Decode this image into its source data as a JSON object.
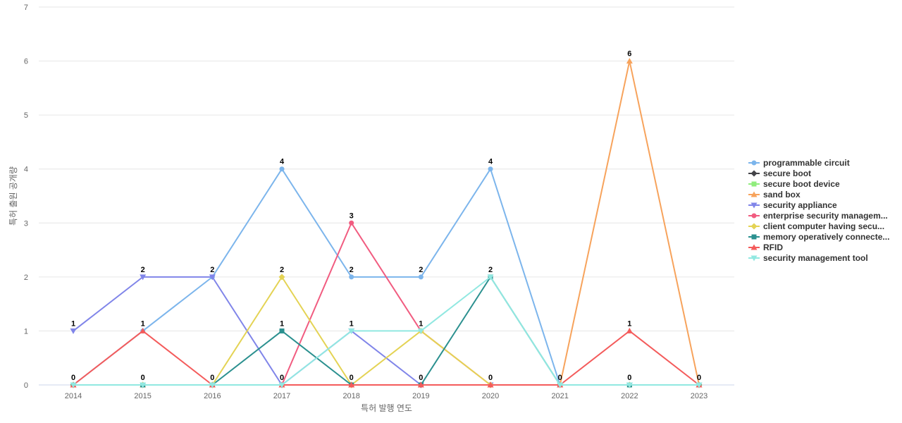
{
  "chart_data": {
    "type": "line",
    "title": "",
    "xlabel": "특허 발행 연도",
    "ylabel": "특허 출원 공개량",
    "x": [
      "2014",
      "2015",
      "2016",
      "2017",
      "2018",
      "2019",
      "2020",
      "2021",
      "2022",
      "2023"
    ],
    "ylim": [
      0,
      7
    ],
    "yticks": [
      0,
      1,
      2,
      3,
      4,
      5,
      6,
      7
    ],
    "grid": true,
    "legend_position": "right",
    "series": [
      {
        "name": "programmable circuit",
        "color": "#7cb5ec",
        "marker": "circle",
        "values": [
          0,
          1,
          2,
          4,
          2,
          2,
          4,
          0,
          0,
          0
        ]
      },
      {
        "name": "secure boot",
        "color": "#434348",
        "marker": "diamond",
        "values": [
          0,
          0,
          0,
          0,
          0,
          0,
          0,
          0,
          0,
          0
        ]
      },
      {
        "name": "secure boot device",
        "color": "#90ed7d",
        "marker": "square",
        "values": [
          0,
          0,
          0,
          0,
          0,
          0,
          0,
          0,
          0,
          0
        ]
      },
      {
        "name": "sand box",
        "color": "#f7a35c",
        "marker": "triangle",
        "values": [
          0,
          0,
          0,
          0,
          0,
          0,
          0,
          0,
          6,
          0
        ]
      },
      {
        "name": "security appliance",
        "color": "#8085e9",
        "marker": "triangle-down",
        "values": [
          1,
          2,
          2,
          0,
          1,
          0,
          0,
          0,
          0,
          0
        ]
      },
      {
        "name": "enterprise security managem...",
        "color": "#f15c80",
        "marker": "circle",
        "values": [
          0,
          0,
          0,
          0,
          3,
          1,
          0,
          0,
          0,
          0
        ]
      },
      {
        "name": "client computer having secu...",
        "color": "#e4d354",
        "marker": "diamond",
        "values": [
          0,
          0,
          0,
          2,
          0,
          1,
          0,
          0,
          0,
          0
        ]
      },
      {
        "name": "memory operatively connecte...",
        "color": "#2b908f",
        "marker": "square",
        "values": [
          0,
          0,
          0,
          1,
          0,
          0,
          2,
          0,
          0,
          0
        ]
      },
      {
        "name": "RFID",
        "color": "#f45b5b",
        "marker": "triangle",
        "values": [
          0,
          1,
          0,
          0,
          0,
          0,
          0,
          0,
          1,
          0
        ]
      },
      {
        "name": "security management tool",
        "color": "#91e8e1",
        "marker": "triangle-down",
        "values": [
          0,
          0,
          0,
          0,
          1,
          1,
          2,
          0,
          0,
          0
        ]
      }
    ],
    "data_labels": [
      {
        "x": "2014",
        "value": 1,
        "text": "1"
      },
      {
        "x": "2014",
        "value": 0,
        "text": "0"
      },
      {
        "x": "2015",
        "value": 2,
        "text": "2"
      },
      {
        "x": "2015",
        "value": 1,
        "text": "1"
      },
      {
        "x": "2015",
        "value": 0,
        "text": "0"
      },
      {
        "x": "2016",
        "value": 2,
        "text": "2"
      },
      {
        "x": "2016",
        "value": 0,
        "text": "0"
      },
      {
        "x": "2017",
        "value": 4,
        "text": "4"
      },
      {
        "x": "2017",
        "value": 2,
        "text": "2"
      },
      {
        "x": "2017",
        "value": 1,
        "text": "1"
      },
      {
        "x": "2017",
        "value": 0,
        "text": "0"
      },
      {
        "x": "2018",
        "value": 3,
        "text": "3"
      },
      {
        "x": "2018",
        "value": 2,
        "text": "2"
      },
      {
        "x": "2018",
        "value": 1,
        "text": "1"
      },
      {
        "x": "2018",
        "value": 0,
        "text": "0"
      },
      {
        "x": "2019",
        "value": 2,
        "text": "2"
      },
      {
        "x": "2019",
        "value": 1,
        "text": "1"
      },
      {
        "x": "2019",
        "value": 0,
        "text": "0"
      },
      {
        "x": "2020",
        "value": 4,
        "text": "4"
      },
      {
        "x": "2020",
        "value": 2,
        "text": "2"
      },
      {
        "x": "2020",
        "value": 0,
        "text": "0"
      },
      {
        "x": "2021",
        "value": 0,
        "text": "0"
      },
      {
        "x": "2022",
        "value": 6,
        "text": "6"
      },
      {
        "x": "2022",
        "value": 1,
        "text": "1"
      },
      {
        "x": "2022",
        "value": 0,
        "text": "0"
      },
      {
        "x": "2023",
        "value": 0,
        "text": "0"
      }
    ]
  }
}
